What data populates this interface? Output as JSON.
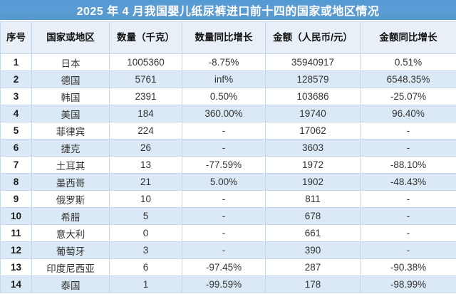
{
  "title": "2025 年 4 月我国婴儿纸尿裤进口前十四的国家或地区情况",
  "colors": {
    "title_bar_bg": "#5b9bd5",
    "title_text": "#ffffff",
    "header_bg": "#e9eff7",
    "stripe_bg": "#dbe8f5",
    "row_bg": "#ffffff",
    "border": "#c5d7ea",
    "text": "#333333"
  },
  "table": {
    "headers": [
      "序号",
      "国家或地区",
      "数量（千克）",
      "数量同比增长",
      "金额（人民币/元）",
      "金额同比增长"
    ],
    "rows": [
      [
        "1",
        "日本",
        "1005360",
        "-8.75%",
        "35940917",
        "0.51%"
      ],
      [
        "2",
        "德国",
        "5761",
        "inf%",
        "128579",
        "6548.35%"
      ],
      [
        "3",
        "韩国",
        "2391",
        "0.50%",
        "103686",
        "-25.07%"
      ],
      [
        "4",
        "美国",
        "184",
        "360.00%",
        "19740",
        "96.40%"
      ],
      [
        "5",
        "菲律宾",
        "224",
        "-",
        "17062",
        "-"
      ],
      [
        "6",
        "捷克",
        "26",
        "-",
        "3603",
        "-"
      ],
      [
        "7",
        "土耳其",
        "13",
        "-77.59%",
        "1972",
        "-88.10%"
      ],
      [
        "8",
        "墨西哥",
        "21",
        "5.00%",
        "1902",
        "-48.43%"
      ],
      [
        "9",
        "俄罗斯",
        "10",
        "-",
        "811",
        "-"
      ],
      [
        "10",
        "希腊",
        "5",
        "-",
        "678",
        "-"
      ],
      [
        "11",
        "意大利",
        "0",
        "-",
        "661",
        "-"
      ],
      [
        "12",
        "葡萄牙",
        "3",
        "-",
        "390",
        "-"
      ],
      [
        "13",
        "印度尼西亚",
        "6",
        "-97.45%",
        "287",
        "-90.38%"
      ],
      [
        "14",
        "泰国",
        "1",
        "-99.59%",
        "178",
        "-98.99%"
      ]
    ]
  }
}
